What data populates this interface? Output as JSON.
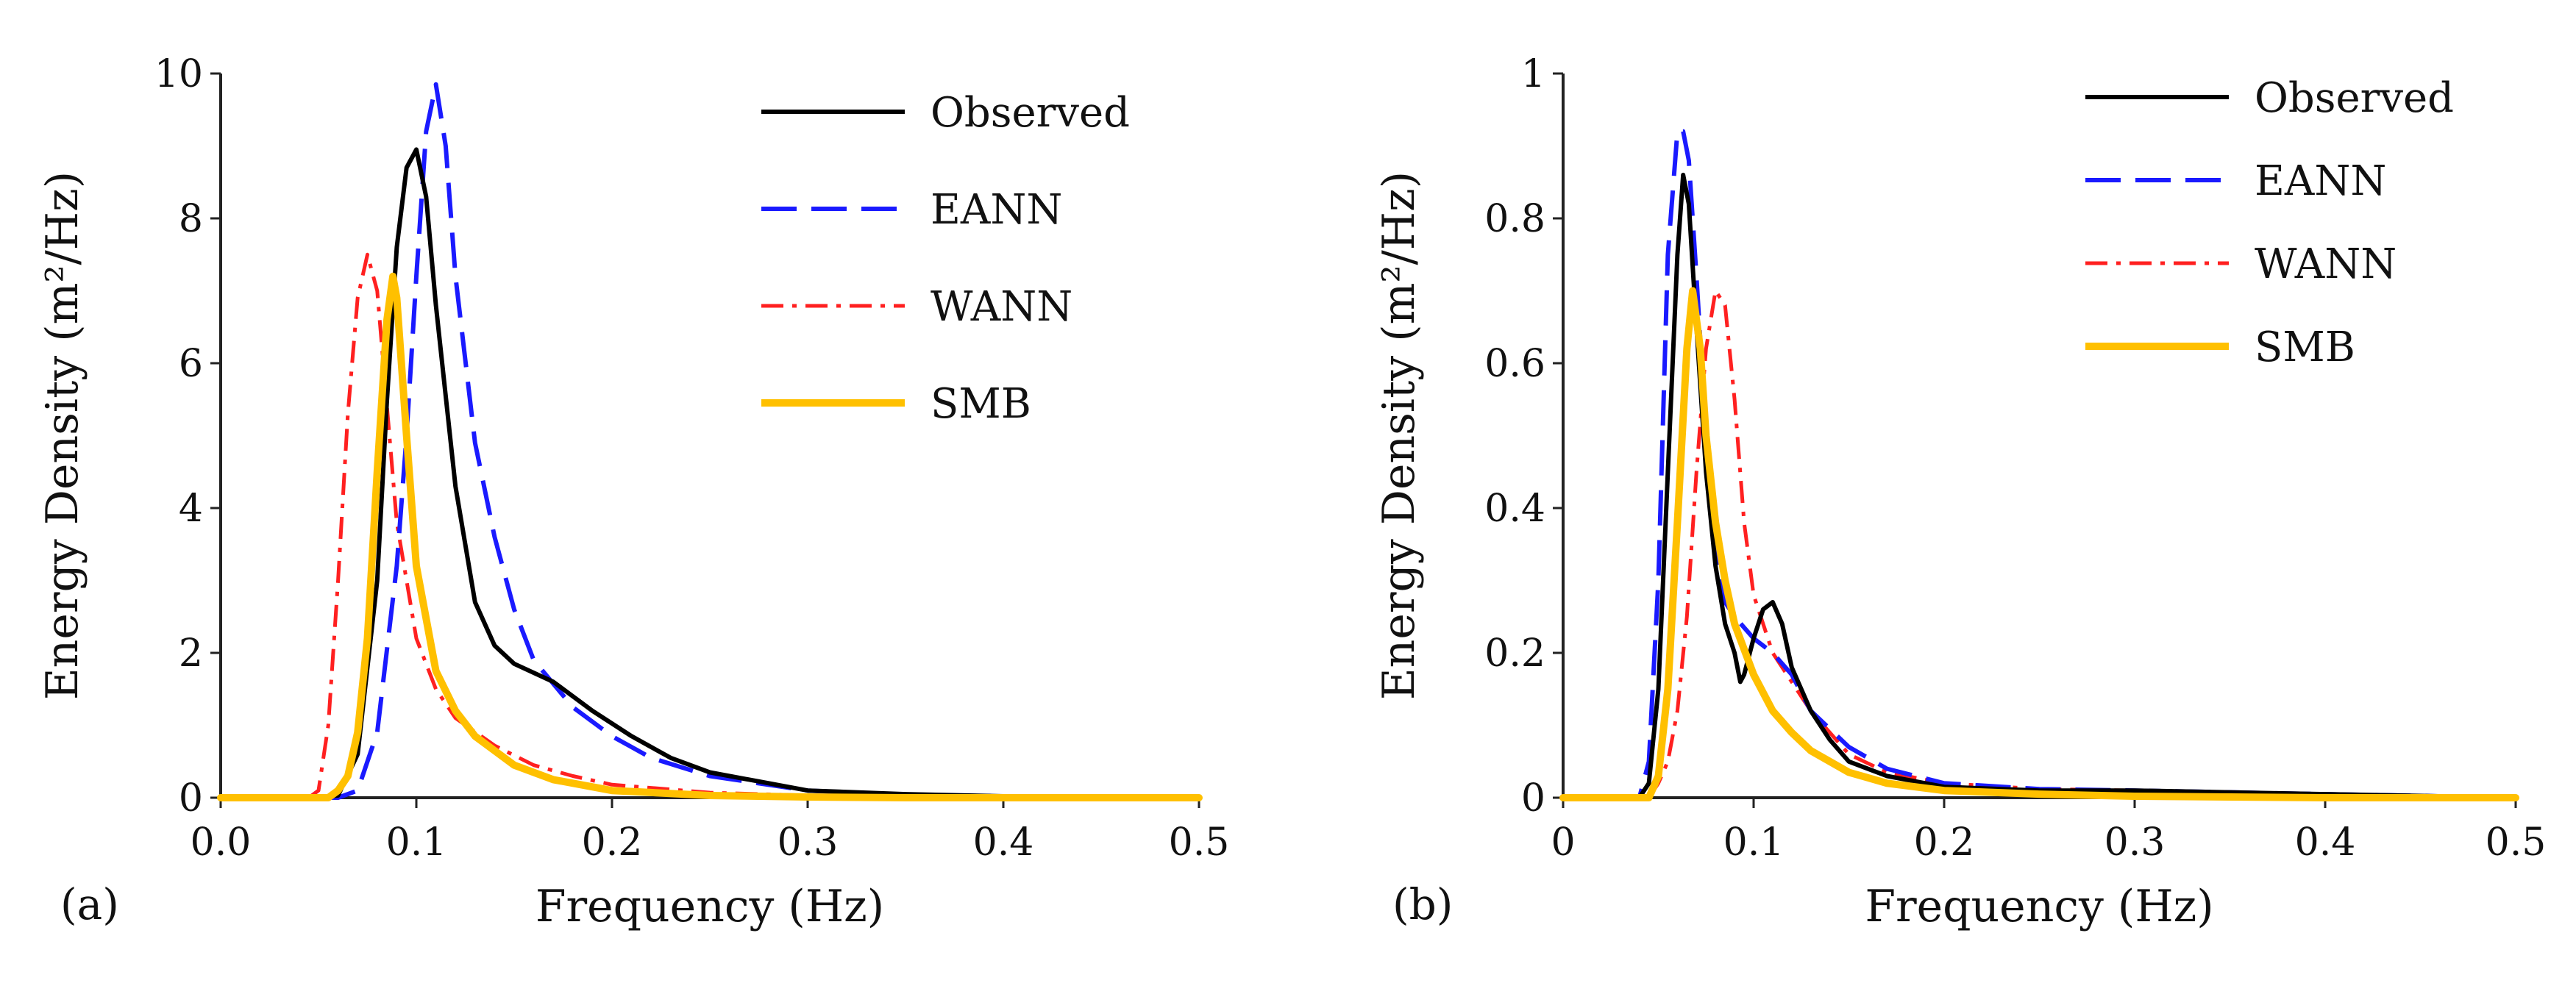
{
  "chart_data": [
    {
      "type": "line",
      "panel_label": "(a)",
      "xlabel": "Frequency (Hz)",
      "ylabel": "Energy Density (m²/Hz)",
      "xlim": [
        0,
        0.5
      ],
      "ylim": [
        0,
        10
      ],
      "xticks": [
        "0.0",
        "0.1",
        "0.2",
        "0.3",
        "0.4",
        "0.5"
      ],
      "xtick_values": [
        0,
        0.1,
        0.2,
        0.3,
        0.4,
        0.5
      ],
      "yticks": [
        "0",
        "2",
        "4",
        "6",
        "8",
        "10"
      ],
      "ytick_values": [
        0,
        2,
        4,
        6,
        8,
        10
      ],
      "grid": false,
      "legend_position": "top-right",
      "series": [
        {
          "name": "Observed",
          "color": "#000000",
          "style": "solid",
          "x": [
            0,
            0.05,
            0.06,
            0.07,
            0.08,
            0.085,
            0.09,
            0.095,
            0.1,
            0.105,
            0.11,
            0.12,
            0.13,
            0.14,
            0.15,
            0.17,
            0.19,
            0.21,
            0.23,
            0.25,
            0.3,
            0.35,
            0.4,
            0.5
          ],
          "y": [
            0,
            0,
            0.03,
            0.6,
            3.0,
            5.5,
            7.6,
            8.7,
            8.95,
            8.3,
            6.8,
            4.3,
            2.7,
            2.1,
            1.85,
            1.6,
            1.2,
            0.85,
            0.55,
            0.35,
            0.1,
            0.05,
            0.02,
            0.01
          ]
        },
        {
          "name": "EANN",
          "color": "#1a1aff",
          "style": "dashed",
          "x": [
            0,
            0.06,
            0.07,
            0.08,
            0.09,
            0.095,
            0.1,
            0.105,
            0.11,
            0.115,
            0.12,
            0.13,
            0.14,
            0.15,
            0.16,
            0.18,
            0.2,
            0.22,
            0.25,
            0.3,
            0.35,
            0.4,
            0.5
          ],
          "y": [
            0,
            0,
            0.1,
            0.9,
            3.2,
            5.0,
            7.2,
            9.2,
            9.85,
            9.0,
            7.2,
            4.9,
            3.6,
            2.6,
            1.9,
            1.25,
            0.85,
            0.55,
            0.3,
            0.1,
            0.04,
            0.02,
            0.01
          ]
        },
        {
          "name": "WANN",
          "color": "#ff2020",
          "style": "dashdot",
          "x": [
            0,
            0.045,
            0.05,
            0.055,
            0.06,
            0.065,
            0.07,
            0.075,
            0.08,
            0.085,
            0.09,
            0.1,
            0.11,
            0.12,
            0.14,
            0.16,
            0.18,
            0.2,
            0.25,
            0.3,
            0.35,
            0.5
          ],
          "y": [
            0,
            0,
            0.1,
            1.0,
            3.0,
            5.3,
            6.9,
            7.5,
            7.0,
            5.4,
            3.8,
            2.2,
            1.5,
            1.1,
            0.72,
            0.45,
            0.3,
            0.18,
            0.07,
            0.03,
            0.01,
            0
          ]
        },
        {
          "name": "SMB",
          "color": "#ffc000",
          "style": "solid",
          "x": [
            0,
            0.055,
            0.06,
            0.065,
            0.07,
            0.075,
            0.08,
            0.085,
            0.088,
            0.09,
            0.095,
            0.1,
            0.11,
            0.12,
            0.13,
            0.15,
            0.17,
            0.2,
            0.25,
            0.3,
            0.35,
            0.5
          ],
          "y": [
            0,
            0,
            0.1,
            0.3,
            0.9,
            2.2,
            4.5,
            6.6,
            7.2,
            6.9,
            5.0,
            3.2,
            1.75,
            1.2,
            0.85,
            0.45,
            0.25,
            0.1,
            0.03,
            0.01,
            0,
            0
          ]
        }
      ]
    },
    {
      "type": "line",
      "panel_label": "(b)",
      "xlabel": "Frequency (Hz)",
      "ylabel": "Energy Density (m²/Hz)",
      "xlim": [
        0,
        0.5
      ],
      "ylim": [
        0,
        1
      ],
      "xticks": [
        "0",
        "0.1",
        "0.2",
        "0.3",
        "0.4",
        "0.5"
      ],
      "xtick_values": [
        0,
        0.1,
        0.2,
        0.3,
        0.4,
        0.5
      ],
      "yticks": [
        "0",
        "0.2",
        "0.4",
        "0.6",
        "0.8",
        "1"
      ],
      "ytick_values": [
        0,
        0.2,
        0.4,
        0.6,
        0.8,
        1.0
      ],
      "grid": false,
      "legend_position": "top-right",
      "series": [
        {
          "name": "Observed",
          "color": "#000000",
          "style": "solid",
          "x": [
            0,
            0.04,
            0.045,
            0.05,
            0.055,
            0.06,
            0.063,
            0.066,
            0.07,
            0.075,
            0.08,
            0.085,
            0.09,
            0.093,
            0.095,
            0.1,
            0.105,
            0.11,
            0.115,
            0.12,
            0.13,
            0.14,
            0.15,
            0.17,
            0.2,
            0.25,
            0.3,
            0.4,
            0.5
          ],
          "y": [
            0,
            0,
            0.02,
            0.15,
            0.45,
            0.75,
            0.86,
            0.82,
            0.65,
            0.45,
            0.32,
            0.24,
            0.2,
            0.16,
            0.17,
            0.22,
            0.26,
            0.27,
            0.24,
            0.18,
            0.12,
            0.08,
            0.05,
            0.03,
            0.015,
            0.01,
            0.01,
            0.005,
            0
          ]
        },
        {
          "name": "EANN",
          "color": "#1a1aff",
          "style": "dashed",
          "x": [
            0,
            0.04,
            0.045,
            0.05,
            0.055,
            0.06,
            0.063,
            0.066,
            0.07,
            0.075,
            0.08,
            0.085,
            0.09,
            0.1,
            0.11,
            0.12,
            0.13,
            0.15,
            0.17,
            0.2,
            0.25,
            0.3,
            0.4,
            0.5
          ],
          "y": [
            0,
            0,
            0.05,
            0.3,
            0.75,
            0.92,
            0.92,
            0.88,
            0.72,
            0.5,
            0.34,
            0.27,
            0.25,
            0.22,
            0.2,
            0.17,
            0.12,
            0.07,
            0.04,
            0.02,
            0.012,
            0.01,
            0.005,
            0
          ]
        },
        {
          "name": "WANN",
          "color": "#ff2020",
          "style": "dashdot",
          "x": [
            0,
            0.045,
            0.05,
            0.055,
            0.06,
            0.065,
            0.07,
            0.075,
            0.08,
            0.085,
            0.09,
            0.095,
            0.1,
            0.11,
            0.12,
            0.13,
            0.15,
            0.17,
            0.2,
            0.25,
            0.3,
            0.4,
            0.5
          ],
          "y": [
            0,
            0,
            0.02,
            0.05,
            0.12,
            0.25,
            0.45,
            0.62,
            0.7,
            0.68,
            0.55,
            0.38,
            0.28,
            0.2,
            0.16,
            0.12,
            0.06,
            0.035,
            0.02,
            0.012,
            0.01,
            0.005,
            0
          ]
        },
        {
          "name": "SMB",
          "color": "#ffc000",
          "style": "solid",
          "x": [
            0,
            0.045,
            0.05,
            0.055,
            0.06,
            0.065,
            0.068,
            0.072,
            0.075,
            0.08,
            0.085,
            0.09,
            0.1,
            0.11,
            0.12,
            0.13,
            0.15,
            0.17,
            0.2,
            0.25,
            0.3,
            0.4,
            0.5
          ],
          "y": [
            0,
            0,
            0.03,
            0.15,
            0.38,
            0.62,
            0.7,
            0.62,
            0.5,
            0.38,
            0.3,
            0.24,
            0.17,
            0.12,
            0.09,
            0.065,
            0.035,
            0.02,
            0.01,
            0.005,
            0.002,
            0,
            0
          ]
        }
      ]
    }
  ]
}
